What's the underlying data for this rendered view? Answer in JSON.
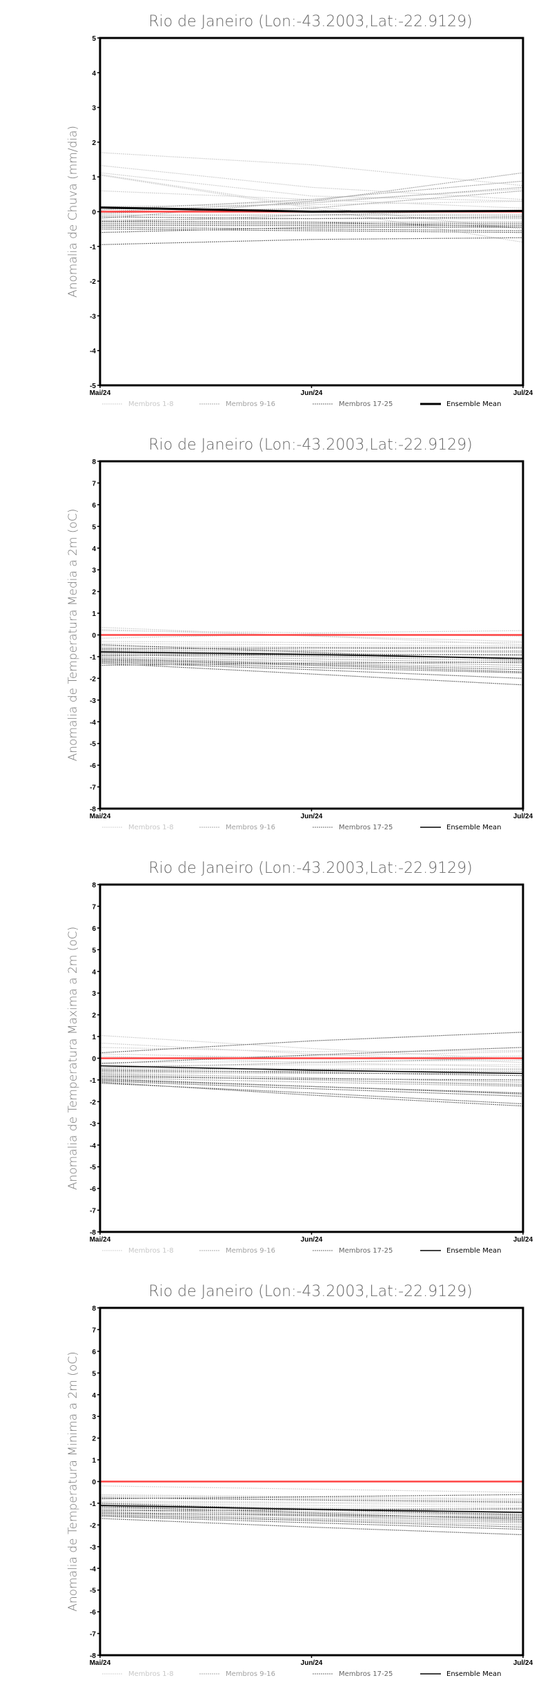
{
  "colors": {
    "group1": "#d2d2d2",
    "group2": "#a8a8a8",
    "group3": "#6e6e6e",
    "mean": "#000000",
    "reference": "#ff4444"
  },
  "chart_data": [
    {
      "type": "line",
      "title": "Rio de Janeiro (Lon:-43.2003,Lat:-22.9129)",
      "ylabel": "Anomalia de Chuva (mm/dia)",
      "x": [
        "Mai/24",
        "Jun/24",
        "Jul/24"
      ],
      "ylim": [
        -5,
        5
      ],
      "yticks": [
        -5,
        -4,
        -3,
        -2,
        -1,
        0,
        1,
        2,
        3,
        4,
        5
      ],
      "legend": [
        "Membros 1-8",
        "Membros 9-16",
        "Membros 17-25",
        "Ensemble Mean"
      ],
      "reference": 0,
      "mean_bold": true,
      "ensemble_mean": [
        0.12,
        0.0,
        0.02
      ],
      "members": [
        [
          1.7,
          1.35,
          0.75
        ],
        [
          1.33,
          0.7,
          0.35
        ],
        [
          1.12,
          0.45,
          0.3
        ],
        [
          1.07,
          0.15,
          -0.5
        ],
        [
          1.05,
          0.1,
          -0.88
        ],
        [
          0.6,
          0.35,
          0.1
        ],
        [
          0.15,
          0.2,
          0.3
        ],
        [
          0.1,
          0.3,
          0.65
        ],
        [
          0.05,
          0.35,
          0.88
        ],
        [
          0,
          0.25,
          0.7
        ],
        [
          -0.05,
          0.1,
          0.6
        ],
        [
          -0.1,
          -0.1,
          -0.1
        ],
        [
          -0.2,
          0.3,
          1.12
        ],
        [
          -0.25,
          -0.2,
          -0.2
        ],
        [
          -0.3,
          -0.3,
          -0.3
        ],
        [
          -0.3,
          -0.1,
          0.05
        ],
        [
          -0.35,
          -0.35,
          -0.35
        ],
        [
          -0.4,
          -0.4,
          -0.4
        ],
        [
          -0.45,
          -0.5,
          -0.55
        ],
        [
          -0.5,
          -0.55,
          -0.6
        ],
        [
          -0.6,
          -0.45,
          -0.45
        ],
        [
          -0.95,
          -0.8,
          -0.75
        ],
        [
          0.1,
          0.0,
          0.0
        ],
        [
          -0.15,
          -0.2,
          -0.15
        ],
        [
          -0.28,
          -0.3,
          -0.45
        ]
      ]
    },
    {
      "type": "line",
      "title": "Rio de Janeiro (Lon:-43.2003,Lat:-22.9129)",
      "ylabel": "Anomalia de Temperatura Media a 2m (oC)",
      "x": [
        "Mai/24",
        "Jun/24",
        "Jul/24"
      ],
      "ylim": [
        -8,
        8
      ],
      "yticks": [
        -8,
        -7,
        -6,
        -5,
        -4,
        -3,
        -2,
        -1,
        0,
        1,
        2,
        3,
        4,
        5,
        6,
        7,
        8
      ],
      "legend": [
        "Membros 1-8",
        "Membros 9-16",
        "Membros 17-25",
        "Ensemble Mean"
      ],
      "reference": 0,
      "mean_bold": false,
      "ensemble_mean": [
        -0.78,
        -0.9,
        -1.08
      ],
      "members": [
        [
          0.35,
          -0.05,
          -0.3
        ],
        [
          0.25,
          -0.05,
          -0.45
        ],
        [
          0.2,
          0.1,
          0.2
        ],
        [
          -0.15,
          0.05,
          -0.05
        ],
        [
          -0.3,
          -0.35,
          -0.35
        ],
        [
          -0.4,
          -0.45,
          -0.5
        ],
        [
          -0.5,
          -0.55,
          -0.55
        ],
        [
          -0.55,
          -0.6,
          -0.7
        ],
        [
          -0.6,
          -0.7,
          -0.75
        ],
        [
          -0.7,
          -0.75,
          -0.8
        ],
        [
          -0.75,
          -0.85,
          -0.95
        ],
        [
          -0.8,
          -0.95,
          -1.1
        ],
        [
          -0.85,
          -1.0,
          -1.2
        ],
        [
          -0.9,
          -1.1,
          -1.3
        ],
        [
          -1.0,
          -1.2,
          -1.4
        ],
        [
          -1.05,
          -1.3,
          -1.5
        ],
        [
          -1.1,
          -1.35,
          -1.6
        ],
        [
          -1.15,
          -1.4,
          -1.7
        ],
        [
          -1.2,
          -1.5,
          -1.75
        ],
        [
          -1.25,
          -1.6,
          -2.0
        ],
        [
          -1.3,
          -1.8,
          -2.3
        ],
        [
          -1.4,
          -1.3,
          -1.25
        ],
        [
          -0.45,
          -0.8,
          -1.15
        ],
        [
          -0.65,
          -0.6,
          -0.6
        ],
        [
          -0.95,
          -0.9,
          -0.9
        ]
      ]
    },
    {
      "type": "line",
      "title": "Rio de Janeiro (Lon:-43.2003,Lat:-22.9129)",
      "ylabel": "Anomalia de Temperatura Maxima a 2m (oC)",
      "x": [
        "Mai/24",
        "Jun/24",
        "Jul/24"
      ],
      "ylim": [
        -8,
        8
      ],
      "yticks": [
        -8,
        -7,
        -6,
        -5,
        -4,
        -3,
        -2,
        -1,
        0,
        1,
        2,
        3,
        4,
        5,
        6,
        7,
        8
      ],
      "legend": [
        "Membros 1-8",
        "Membros 9-16",
        "Membros 17-25",
        "Ensemble Mean"
      ],
      "reference": 0,
      "mean_bold": false,
      "ensemble_mean": [
        -0.35,
        -0.55,
        -0.7
      ],
      "members": [
        [
          1.05,
          0.45,
          -0.05
        ],
        [
          0.7,
          0.2,
          -0.2
        ],
        [
          0.5,
          0.3,
          0.35
        ],
        [
          0.2,
          0.0,
          0.1
        ],
        [
          0.1,
          -0.2,
          -0.4
        ],
        [
          0,
          0.1,
          0.3
        ],
        [
          -0.2,
          -0.15,
          -0.1
        ],
        [
          -0.35,
          -0.3,
          -0.3
        ],
        [
          -0.45,
          -0.2,
          0
        ],
        [
          -0.5,
          -0.5,
          -0.5
        ],
        [
          -0.6,
          -0.6,
          -0.6
        ],
        [
          -0.65,
          -0.7,
          -0.7
        ],
        [
          -0.7,
          -0.9,
          -1.1
        ],
        [
          -0.75,
          -1.0,
          -1.2
        ],
        [
          -0.8,
          -1.0,
          -1.25
        ],
        [
          -0.9,
          -1.1,
          -1.3
        ],
        [
          -0.95,
          -1.3,
          -1.6
        ],
        [
          -1.0,
          -1.3,
          -1.65
        ],
        [
          -1.05,
          -1.4,
          -1.75
        ],
        [
          -1.15,
          -1.6,
          -2.1
        ],
        [
          0.25,
          0.8,
          1.2
        ],
        [
          -0.25,
          0.15,
          0.5
        ],
        [
          -0.55,
          -0.65,
          -0.8
        ],
        [
          -0.85,
          -0.95,
          -1.0
        ],
        [
          -1.1,
          -1.7,
          -2.2
        ]
      ]
    },
    {
      "type": "line",
      "title": "Rio de Janeiro (Lon:-43.2003,Lat:-22.9129)",
      "ylabel": "Anomalia de Temperatura Minima a 2m (oC)",
      "x": [
        "Mai/24",
        "Jun/24",
        "Jul/24"
      ],
      "ylim": [
        -8,
        8
      ],
      "yticks": [
        -8,
        -7,
        -6,
        -5,
        -4,
        -3,
        -2,
        -1,
        0,
        1,
        2,
        3,
        4,
        5,
        6,
        7,
        8
      ],
      "legend": [
        "Membros 1-8",
        "Membros 9-16",
        "Membros 17-25",
        "Ensemble Mean"
      ],
      "reference": 0,
      "mean_bold": false,
      "ensemble_mean": [
        -1.1,
        -1.28,
        -1.42
      ],
      "members": [
        [
          -0.2,
          -0.35,
          -0.5
        ],
        [
          -0.6,
          -0.7,
          -0.8
        ],
        [
          -0.65,
          -0.75,
          -0.85
        ],
        [
          -0.7,
          -0.8,
          -0.9
        ],
        [
          -0.9,
          -0.95,
          -1.0
        ],
        [
          -0.95,
          -1.0,
          -1.1
        ],
        [
          -1.0,
          -1.1,
          -1.2
        ],
        [
          -1.05,
          -1.2,
          -1.3
        ],
        [
          -1.1,
          -1.25,
          -1.4
        ],
        [
          -1.15,
          -1.3,
          -1.5
        ],
        [
          -1.2,
          -1.4,
          -1.6
        ],
        [
          -1.25,
          -1.5,
          -1.7
        ],
        [
          -1.3,
          -1.55,
          -1.8
        ],
        [
          -1.4,
          -1.6,
          -1.85
        ],
        [
          -1.45,
          -1.7,
          -1.9
        ],
        [
          -1.5,
          -1.75,
          -2.0
        ],
        [
          -1.55,
          -1.8,
          -2.1
        ],
        [
          -1.6,
          -1.9,
          -2.2
        ],
        [
          -1.7,
          -2.1,
          -2.45
        ],
        [
          -0.8,
          -0.7,
          -0.6
        ],
        [
          -1.35,
          -1.3,
          -1.25
        ],
        [
          -1.0,
          -1.3,
          -1.55
        ],
        [
          -1.15,
          -1.45,
          -1.75
        ],
        [
          -0.75,
          -0.85,
          -0.95
        ],
        [
          -1.45,
          -1.55,
          -1.65
        ]
      ]
    }
  ]
}
